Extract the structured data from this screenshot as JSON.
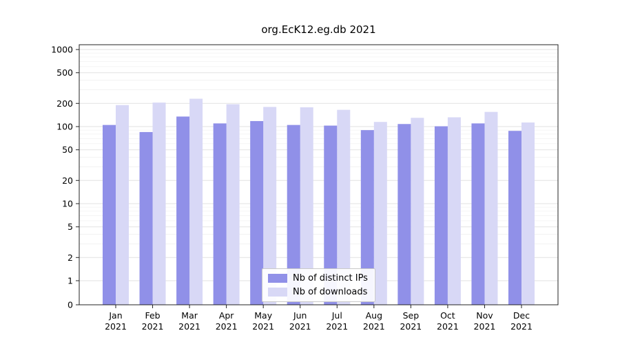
{
  "chart_data": {
    "type": "bar",
    "title": "org.EcK12.eg.db 2021",
    "categories": [
      "Jan",
      "Feb",
      "Mar",
      "Apr",
      "May",
      "Jun",
      "Jul",
      "Aug",
      "Sep",
      "Oct",
      "Nov",
      "Dec"
    ],
    "year_label": "2021",
    "series": [
      {
        "name": "Nb of distinct IPs",
        "color": "#9090e8",
        "values": [
          105,
          85,
          135,
          110,
          118,
          105,
          103,
          90,
          108,
          101,
          110,
          88
        ]
      },
      {
        "name": "Nb of downloads",
        "color": "#d8d8f6",
        "values": [
          190,
          205,
          230,
          195,
          180,
          178,
          165,
          115,
          130,
          132,
          155,
          113
        ]
      }
    ],
    "yticks": [
      0,
      1,
      2,
      5,
      10,
      20,
      50,
      100,
      200,
      500,
      1000
    ],
    "ylim": [
      0,
      1000
    ],
    "yscale": "log",
    "grid": true,
    "legend_position": "lower center",
    "colors": {
      "major_grid": "#e2e2e2",
      "minor_grid": "#f1f1f1",
      "axis": "#202020",
      "text": "#000000"
    }
  }
}
